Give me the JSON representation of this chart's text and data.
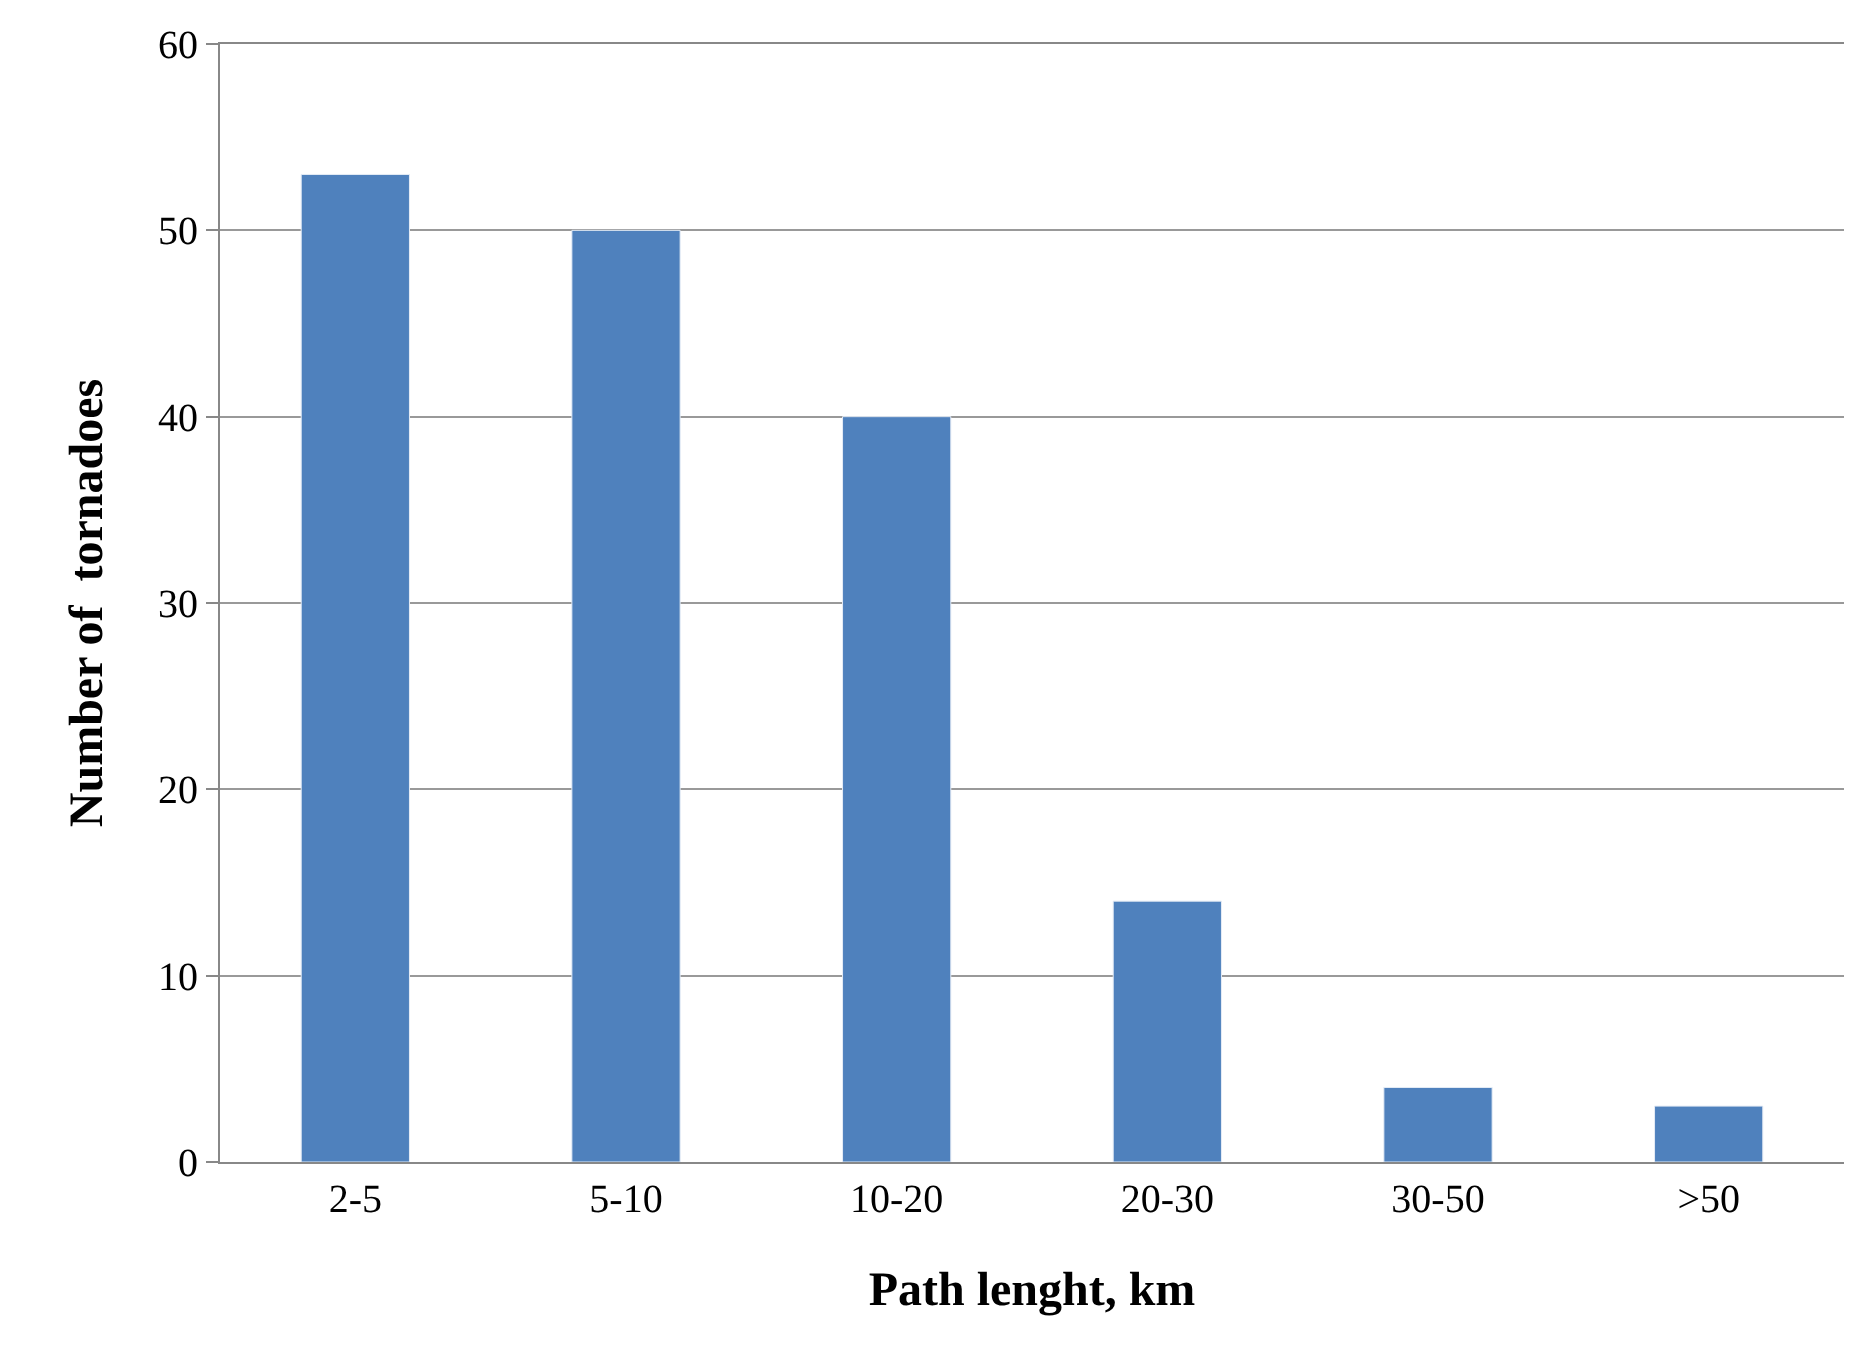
{
  "chart_data": {
    "type": "bar",
    "xlabel": "Path lenght, km",
    "ylabel": "Number of  tornadoes",
    "categories": [
      "2-5",
      "5-10",
      "10-20",
      "20-30",
      "30-50",
      ">50"
    ],
    "values": [
      53,
      50,
      40,
      14,
      4,
      3
    ],
    "color": "#4f81bd",
    "ylim": [
      0,
      60
    ],
    "yticks": [
      0,
      10,
      20,
      30,
      40,
      50,
      60
    ],
    "grid": "y"
  }
}
